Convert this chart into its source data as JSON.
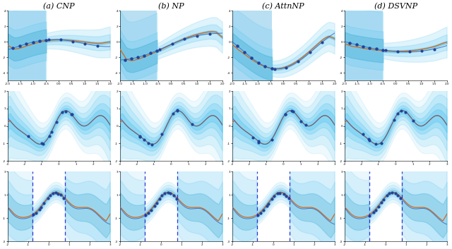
{
  "titles": [
    "(a) CNP",
    "(b) NP",
    "(c) AttnNP",
    "(d) DSVNP"
  ],
  "n_cols": 4,
  "n_rows": 3,
  "fig_bg": "#ffffff",
  "band_color": "#56C5F0",
  "band_color_dark": "#3AAAD4",
  "true_line_color": "#3366BB",
  "orange_line": "#D2691E",
  "dashed_blue": "#2222CC",
  "context_bg_color": "#A8D8F0",
  "scatter_color": "#224499",
  "row0_xlim": [
    -2.0,
    2.0
  ],
  "row0_ylim": [
    -5,
    4
  ],
  "row1_xlim": [
    -3.0,
    3.0
  ],
  "row1_ylim": [
    -2,
    2
  ],
  "row2_xlim": [
    -2.0,
    3.0
  ],
  "row2_ylim": [
    -3,
    3
  ]
}
